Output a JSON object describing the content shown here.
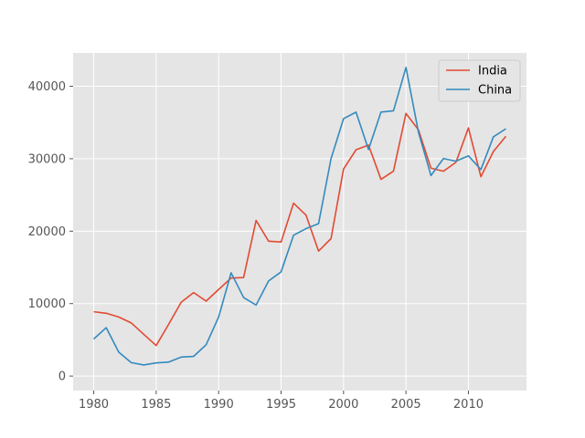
{
  "chart_data": {
    "type": "line",
    "title": "",
    "xlabel": "",
    "ylabel": "",
    "xlim": [
      1978.35,
      2014.65
    ],
    "ylim": [
      -2000,
      44600
    ],
    "grid": true,
    "legend_position": "top-right",
    "x_ticks": [
      1980,
      1985,
      1990,
      1995,
      2000,
      2005,
      2010
    ],
    "y_ticks": [
      0,
      10000,
      20000,
      30000,
      40000
    ],
    "x": [
      1980,
      1981,
      1982,
      1983,
      1984,
      1985,
      1986,
      1987,
      1988,
      1989,
      1990,
      1991,
      1992,
      1993,
      1994,
      1995,
      1996,
      1997,
      1998,
      1999,
      2000,
      2001,
      2002,
      2003,
      2004,
      2005,
      2006,
      2007,
      2008,
      2009,
      2010,
      2011,
      2012,
      2013
    ],
    "series": [
      {
        "name": "India",
        "color": "#E24A33",
        "values": [
          8880,
          8670,
          8150,
          7340,
          5770,
          4210,
          7150,
          10190,
          11520,
          10340,
          11950,
          13530,
          13600,
          21480,
          18620,
          18500,
          23860,
          22200,
          17250,
          18970,
          28570,
          31230,
          31880,
          27150,
          28280,
          36250,
          33980,
          28700,
          28270,
          29500,
          34250,
          27510,
          31000,
          33090
        ]
      },
      {
        "name": "China",
        "color": "#348ABD",
        "values": [
          5120,
          6680,
          3310,
          1860,
          1530,
          1820,
          1930,
          2620,
          2720,
          4320,
          8150,
          14250,
          10840,
          9800,
          13130,
          14380,
          19440,
          20350,
          21030,
          30010,
          35520,
          36430,
          31260,
          36440,
          36610,
          42590,
          33650,
          27680,
          30020,
          29660,
          30390,
          28500,
          33020,
          34130
        ]
      }
    ]
  }
}
